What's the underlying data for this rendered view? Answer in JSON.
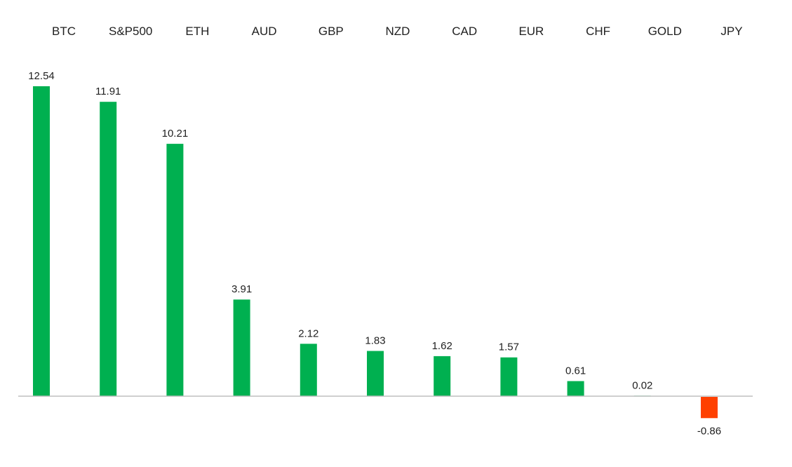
{
  "chart_data": {
    "type": "bar",
    "title": "",
    "xlabel": "",
    "ylabel": "",
    "categories": [
      "BTC",
      "S&P500",
      "ETH",
      "AUD",
      "GBP",
      "NZD",
      "CAD",
      "EUR",
      "CHF",
      "GOLD",
      "JPY"
    ],
    "values": [
      12.54,
      11.91,
      10.21,
      3.91,
      2.12,
      1.83,
      1.62,
      1.57,
      0.61,
      0.02,
      -0.86
    ],
    "value_labels": [
      "12.54",
      "11.91",
      "10.21",
      "3.91",
      "2.12",
      "1.83",
      "1.62",
      "1.57",
      "0.61",
      "0.02",
      "-0.86"
    ],
    "ylim": [
      -0.86,
      12.54
    ],
    "category_labels_position": "top",
    "grid": false,
    "legend": "none",
    "colors": {
      "positive": "#00b050",
      "negative": "#ff4000",
      "baseline": "#bfbfbf"
    }
  }
}
